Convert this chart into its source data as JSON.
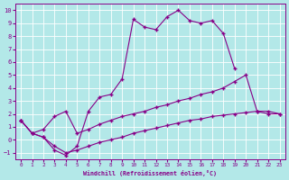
{
  "xlabel": "Windchill (Refroidissement éolien,°C)",
  "background_color": "#b3e8e8",
  "line_color": "#880088",
  "grid_color": "#ffffff",
  "xlim": [
    -0.5,
    23.5
  ],
  "ylim": [
    -1.5,
    10.5
  ],
  "xticks": [
    0,
    1,
    2,
    3,
    4,
    5,
    6,
    7,
    8,
    9,
    10,
    11,
    12,
    13,
    14,
    15,
    16,
    17,
    18,
    19,
    20,
    21,
    22,
    23
  ],
  "yticks": [
    -1,
    0,
    1,
    2,
    3,
    4,
    5,
    6,
    7,
    8,
    9,
    10
  ],
  "curve1_x": [
    0,
    1,
    2,
    3,
    4,
    5,
    6,
    7,
    8,
    9,
    10,
    11,
    12,
    13,
    14,
    15,
    16,
    17,
    18,
    19
  ],
  "curve1_y": [
    1.5,
    0.5,
    0.2,
    -0.8,
    -1.2,
    -0.5,
    2.2,
    3.3,
    3.5,
    4.7,
    9.3,
    8.7,
    8.5,
    9.5,
    10.0,
    9.2,
    9.0,
    9.2,
    8.2,
    5.5
  ],
  "curve2_x": [
    0,
    1,
    2,
    3,
    4,
    5,
    6,
    7,
    8,
    9,
    10,
    11,
    12,
    13,
    14,
    15,
    16,
    17,
    18,
    19,
    20,
    21,
    22,
    23
  ],
  "curve2_y": [
    1.5,
    0.5,
    0.8,
    1.8,
    2.2,
    0.5,
    0.8,
    1.2,
    1.5,
    1.8,
    2.0,
    2.2,
    2.5,
    2.7,
    3.0,
    3.2,
    3.5,
    3.7,
    4.0,
    4.5,
    5.0,
    2.2,
    2.0,
    2.0
  ],
  "curve3_x": [
    0,
    1,
    2,
    3,
    4,
    5,
    6,
    7,
    8,
    9,
    10,
    11,
    12,
    13,
    14,
    15,
    16,
    17,
    18,
    19,
    20,
    21,
    22,
    23
  ],
  "curve3_y": [
    1.5,
    0.5,
    0.2,
    -0.5,
    -1.0,
    -0.8,
    -0.5,
    -0.2,
    0.0,
    0.2,
    0.5,
    0.7,
    0.9,
    1.1,
    1.3,
    1.5,
    1.6,
    1.8,
    1.9,
    2.0,
    2.1,
    2.2,
    2.2,
    2.0
  ]
}
